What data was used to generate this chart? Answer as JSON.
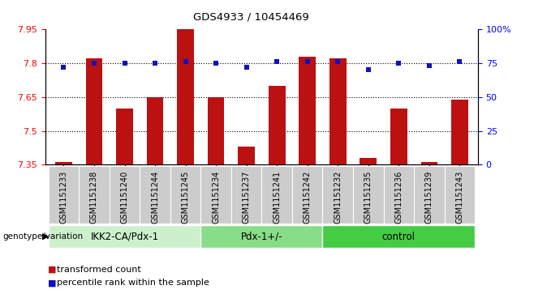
{
  "title": "GDS4933 / 10454469",
  "samples": [
    "GSM1151233",
    "GSM1151238",
    "GSM1151240",
    "GSM1151244",
    "GSM1151245",
    "GSM1151234",
    "GSM1151237",
    "GSM1151241",
    "GSM1151242",
    "GSM1151232",
    "GSM1151235",
    "GSM1151236",
    "GSM1151239",
    "GSM1151243"
  ],
  "bar_values": [
    7.36,
    7.82,
    7.6,
    7.65,
    7.95,
    7.65,
    7.43,
    7.7,
    7.83,
    7.82,
    7.38,
    7.6,
    7.36,
    7.64
  ],
  "percentile_values": [
    72,
    75,
    75,
    75,
    76,
    75,
    72,
    76,
    76,
    76,
    70,
    75,
    73,
    76
  ],
  "groups": [
    {
      "label": "IKK2-CA/Pdx-1",
      "start": 0,
      "end": 5,
      "color": "#ccf0cc"
    },
    {
      "label": "Pdx-1+/-",
      "start": 5,
      "end": 9,
      "color": "#88dd88"
    },
    {
      "label": "control",
      "start": 9,
      "end": 14,
      "color": "#44cc44"
    }
  ],
  "ylim_left": [
    7.35,
    7.95
  ],
  "ylim_right": [
    0,
    100
  ],
  "yticks_left": [
    7.35,
    7.5,
    7.65,
    7.8,
    7.95
  ],
  "yticks_right": [
    0,
    25,
    50,
    75,
    100
  ],
  "ytick_labels_right": [
    "0",
    "25",
    "50",
    "75",
    "100%"
  ],
  "bar_color": "#bb1111",
  "dot_color": "#1111bb",
  "bar_width": 0.55,
  "hline_values": [
    7.5,
    7.65,
    7.8
  ],
  "legend_items": [
    "transformed count",
    "percentile rank within the sample"
  ],
  "background_color": "#ffffff",
  "tick_label_bg": "#cccccc",
  "genotype_label": "genotype/variation"
}
